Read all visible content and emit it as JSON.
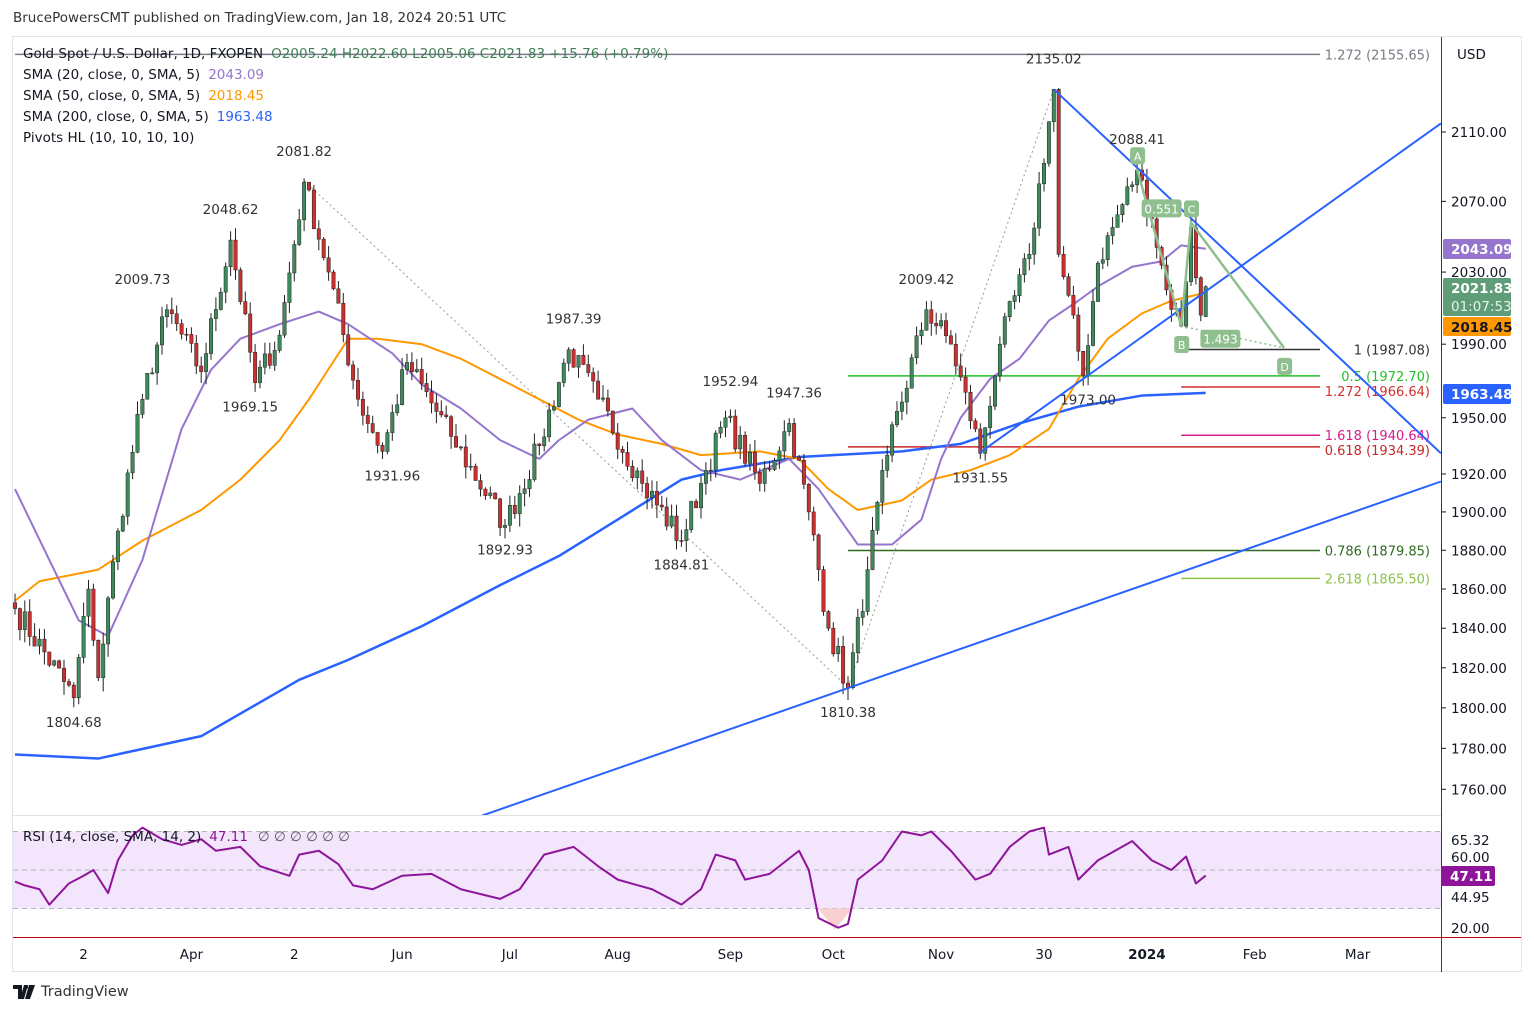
{
  "header": {
    "published": "BrucePowersCMT published on TradingView.com, Jan 18, 2024 20:51 UTC"
  },
  "legend": {
    "symbol": "Gold Spot / U.S. Dollar, 1D, FXOPEN",
    "ohlc": "O2005.24  H2022.60  L2005.06  C2021.83  +15.76 (+0.79%)",
    "sma20_label": "SMA (20, close, 0, SMA, 5)",
    "sma20_value": "2043.09",
    "sma50_label": "SMA (50, close, 0, SMA, 5)",
    "sma50_value": "2018.45",
    "sma200_label": "SMA (200, close, 0, SMA, 5)",
    "sma200_value": "1963.48",
    "pivots_label": "Pivots HL (10, 10, 10, 10)"
  },
  "rsi_legend": {
    "label": "RSI (14, close, SMA, 14, 2)",
    "value": "47.11",
    "extras": "∅  ∅  ∅  ∅  ∅  ∅"
  },
  "currency": "USD",
  "badges": {
    "sma20": {
      "value": "2043.09",
      "color": "#9575cd"
    },
    "price": {
      "value": "2021.83",
      "countdown": "01:07:53",
      "color": "#5f9c78"
    },
    "sma50": {
      "value": "2018.45",
      "color": "#ff9800"
    },
    "sma200": {
      "value": "1963.48",
      "color": "#2962ff"
    },
    "rsi": {
      "value": "47.11",
      "color": "#8e1599"
    }
  },
  "footer": {
    "brand": "TradingView"
  },
  "colors": {
    "up": "#3f8a5c",
    "down": "#c8312f",
    "sma20": "#9575cd",
    "sma50": "#ff9800",
    "sma200": "#2962ff",
    "trend": "#2962ff",
    "rsi": "#8e1599",
    "pattern": "#8fbf8f"
  },
  "chart_data": {
    "type": "candlestick",
    "title": "Gold Spot / U.S. Dollar, 1D, FXOPEN",
    "x_unit": "trading bar index (0 = mid Feb 2023, 243 = Jan 18 2024)",
    "price_scale": "log",
    "ylim": [
      1747,
      2175
    ],
    "price_ticks": [
      "2110.00",
      "2070.00",
      "2030.00",
      "1990.00",
      "1950.00",
      "1920.00",
      "1900.00",
      "1880.00",
      "1860.00",
      "1840.00",
      "1820.00",
      "1800.00",
      "1780.00",
      "1760.00"
    ],
    "time_ticks": [
      {
        "label": "2",
        "bar": 14
      },
      {
        "label": "Apr",
        "bar": 36
      },
      {
        "label": "2",
        "bar": 57
      },
      {
        "label": "Jun",
        "bar": 79
      },
      {
        "label": "Jul",
        "bar": 101
      },
      {
        "label": "Aug",
        "bar": 123
      },
      {
        "label": "Sep",
        "bar": 146
      },
      {
        "label": "Oct",
        "bar": 167
      },
      {
        "label": "Nov",
        "bar": 189
      },
      {
        "label": "30",
        "bar": 210
      },
      {
        "label": "2024",
        "bar": 231,
        "bold": true
      },
      {
        "label": "Feb",
        "bar": 253
      },
      {
        "label": "Mar",
        "bar": 274
      }
    ],
    "last_bar": {
      "bar": 243,
      "open": 2005.24,
      "high": 2022.6,
      "low": 2005.06,
      "close": 2021.83
    },
    "price_path_anchors": [
      [
        0,
        1850
      ],
      [
        12,
        1805
      ],
      [
        15,
        1860
      ],
      [
        17,
        1815
      ],
      [
        21,
        1890
      ],
      [
        26,
        1960
      ],
      [
        31,
        2009
      ],
      [
        38,
        1975
      ],
      [
        44,
        2048
      ],
      [
        49,
        1969
      ],
      [
        54,
        1995
      ],
      [
        59,
        2081
      ],
      [
        64,
        2030
      ],
      [
        70,
        1960
      ],
      [
        75,
        1932
      ],
      [
        80,
        1980
      ],
      [
        89,
        1940
      ],
      [
        100,
        1893
      ],
      [
        107,
        1935
      ],
      [
        113,
        1987
      ],
      [
        119,
        1960
      ],
      [
        128,
        1915
      ],
      [
        136,
        1885
      ],
      [
        140,
        1915
      ],
      [
        145,
        1950
      ],
      [
        152,
        1915
      ],
      [
        158,
        1947
      ],
      [
        162,
        1900
      ],
      [
        166,
        1840
      ],
      [
        170,
        1810
      ],
      [
        174,
        1870
      ],
      [
        178,
        1930
      ],
      [
        186,
        2009
      ],
      [
        191,
        1990
      ],
      [
        197,
        1931
      ],
      [
        201,
        1990
      ],
      [
        207,
        2040
      ],
      [
        212,
        2135
      ],
      [
        213,
        2040
      ],
      [
        218,
        1973
      ],
      [
        221,
        2035
      ],
      [
        229,
        2088
      ],
      [
        232,
        2060
      ],
      [
        235,
        2020
      ],
      [
        238,
        2000
      ],
      [
        240,
        2055
      ],
      [
        242,
        2006
      ],
      [
        243,
        2021.83
      ]
    ],
    "sma20": [
      [
        0,
        1912
      ],
      [
        7,
        1875
      ],
      [
        13,
        1844
      ],
      [
        19,
        1836
      ],
      [
        26,
        1875
      ],
      [
        34,
        1944
      ],
      [
        40,
        1976
      ],
      [
        46,
        1993
      ],
      [
        54,
        2001
      ],
      [
        62,
        2008
      ],
      [
        68,
        2001
      ],
      [
        77,
        1985
      ],
      [
        83,
        1968
      ],
      [
        91,
        1955
      ],
      [
        99,
        1938
      ],
      [
        107,
        1928
      ],
      [
        111,
        1938
      ],
      [
        117,
        1949
      ],
      [
        126,
        1955
      ],
      [
        132,
        1938
      ],
      [
        140,
        1922
      ],
      [
        148,
        1917
      ],
      [
        158,
        1928
      ],
      [
        164,
        1912
      ],
      [
        172,
        1883
      ],
      [
        179,
        1883
      ],
      [
        185,
        1896
      ],
      [
        189,
        1928
      ],
      [
        193,
        1950
      ],
      [
        199,
        1971
      ],
      [
        205,
        1982
      ],
      [
        211,
        2003
      ],
      [
        217,
        2014
      ],
      [
        221,
        2022
      ],
      [
        228,
        2033
      ],
      [
        234,
        2036
      ],
      [
        238,
        2045
      ],
      [
        243,
        2043.09
      ]
    ],
    "sma50": [
      [
        0,
        1854
      ],
      [
        5,
        1864
      ],
      [
        17,
        1870
      ],
      [
        26,
        1885
      ],
      [
        38,
        1901
      ],
      [
        46,
        1917
      ],
      [
        54,
        1938
      ],
      [
        60,
        1960
      ],
      [
        68,
        1993
      ],
      [
        74,
        1993
      ],
      [
        83,
        1990
      ],
      [
        91,
        1982
      ],
      [
        99,
        1971
      ],
      [
        107,
        1960
      ],
      [
        115,
        1949
      ],
      [
        123,
        1941
      ],
      [
        132,
        1936
      ],
      [
        140,
        1930
      ],
      [
        152,
        1932
      ],
      [
        160,
        1928
      ],
      [
        166,
        1912
      ],
      [
        172,
        1901
      ],
      [
        181,
        1906
      ],
      [
        187,
        1917
      ],
      [
        195,
        1922
      ],
      [
        203,
        1930
      ],
      [
        211,
        1944
      ],
      [
        217,
        1971
      ],
      [
        223,
        1993
      ],
      [
        230,
        2007
      ],
      [
        236,
        2014
      ],
      [
        243,
        2018.45
      ]
    ],
    "sma200": [
      [
        0,
        1777
      ],
      [
        17,
        1775
      ],
      [
        38,
        1786
      ],
      [
        58,
        1814
      ],
      [
        68,
        1824
      ],
      [
        83,
        1841
      ],
      [
        99,
        1862
      ],
      [
        111,
        1877
      ],
      [
        123,
        1896
      ],
      [
        136,
        1917
      ],
      [
        144,
        1922
      ],
      [
        160,
        1929
      ],
      [
        181,
        1932
      ],
      [
        193,
        1936
      ],
      [
        205,
        1947
      ],
      [
        217,
        1956
      ],
      [
        230,
        1962
      ],
      [
        243,
        1963.48
      ]
    ],
    "pivot_labels": [
      {
        "text": "1804.68",
        "bar": 12,
        "price": 1805,
        "pos": "below"
      },
      {
        "text": "2009.73",
        "bar": 26,
        "price": 2009,
        "pos": "above"
      },
      {
        "text": "2048.62",
        "bar": 44,
        "price": 2048,
        "pos": "above"
      },
      {
        "text": "1969.15",
        "bar": 48,
        "price": 1969,
        "pos": "below"
      },
      {
        "text": "2081.82",
        "bar": 59,
        "price": 2081,
        "pos": "above"
      },
      {
        "text": "1931.96",
        "bar": 77,
        "price": 1932,
        "pos": "below"
      },
      {
        "text": "1892.93",
        "bar": 100,
        "price": 1893,
        "pos": "below"
      },
      {
        "text": "1987.39",
        "bar": 114,
        "price": 1987,
        "pos": "above"
      },
      {
        "text": "1884.81",
        "bar": 136,
        "price": 1885,
        "pos": "below"
      },
      {
        "text": "1952.94",
        "bar": 146,
        "price": 1953,
        "pos": "above"
      },
      {
        "text": "1947.36",
        "bar": 159,
        "price": 1947,
        "pos": "above"
      },
      {
        "text": "1810.38",
        "bar": 170,
        "price": 1810,
        "pos": "below"
      },
      {
        "text": "2009.42",
        "bar": 186,
        "price": 2009,
        "pos": "above"
      },
      {
        "text": "1931.55",
        "bar": 197,
        "price": 1931,
        "pos": "below"
      },
      {
        "text": "2135.02",
        "bar": 212,
        "price": 2135,
        "pos": "above"
      },
      {
        "text": "1973.00",
        "bar": 219,
        "price": 1973,
        "pos": "below"
      },
      {
        "text": "2088.41",
        "bar": 229,
        "price": 2088,
        "pos": "above"
      }
    ],
    "trendlines": [
      {
        "from": [
          95,
          1747
        ],
        "to": [
          291,
          1916
        ]
      },
      {
        "from": [
          197,
          1931.5
        ],
        "to": [
          291,
          2115
        ]
      },
      {
        "from": [
          212,
          2135
        ],
        "to": [
          291,
          1931
        ]
      }
    ],
    "dotted_lines": [
      [
        [
          59,
          2081.82
        ],
        [
          170,
          1810.38
        ]
      ],
      [
        [
          170,
          1810.38
        ],
        [
          212,
          2135.02
        ]
      ]
    ],
    "fib_levels": [
      {
        "label": "1.272 (2155.65)",
        "price": 2155.65,
        "from_bar": 0,
        "color": "#787b86"
      },
      {
        "label": "1 (1987.08)",
        "price": 1987.08,
        "from_bar": 238,
        "color": "#333333"
      },
      {
        "label": "0.5 (1972.70)",
        "price": 1972.7,
        "from_bar": 170,
        "color": "#22c02a"
      },
      {
        "label": "1.272 (1966.64)",
        "price": 1966.64,
        "from_bar": 238,
        "color": "#d32f2f"
      },
      {
        "label": "1.618 (1940.64)",
        "price": 1940.64,
        "from_bar": 238,
        "color": "#d81b8c"
      },
      {
        "label": "0.618 (1934.39)",
        "price": 1934.39,
        "from_bar": 170,
        "color": "#c62828"
      },
      {
        "label": "0.786 (1879.85)",
        "price": 1879.85,
        "from_bar": 170,
        "color": "#2e6b1f"
      },
      {
        "label": "2.618 (1865.50)",
        "price": 1865.5,
        "from_bar": 238,
        "color": "#8bc34a"
      }
    ],
    "abcd_pattern": {
      "points": [
        {
          "label": "A",
          "bar": 229,
          "price": 2088.41
        },
        {
          "label": "B",
          "bar": 238,
          "price": 2000
        },
        {
          "label": "C",
          "bar": 240,
          "price": 2058
        },
        {
          "label": "D",
          "bar": 259,
          "price": 1988
        }
      ],
      "ratios": [
        {
          "text": "0.551",
          "bar": 234,
          "price": 2066
        },
        {
          "text": "1.493",
          "bar": 246,
          "price": 1993
        }
      ]
    },
    "rsi": {
      "ylim": [
        15,
        75
      ],
      "levels": [
        70,
        50,
        30
      ],
      "ticks": [
        "65.32",
        "60.00",
        "44.95",
        "20.00"
      ],
      "points": [
        [
          0,
          44
        ],
        [
          2,
          42
        ],
        [
          5,
          40
        ],
        [
          7,
          32
        ],
        [
          11,
          43
        ],
        [
          14,
          47
        ],
        [
          16,
          50
        ],
        [
          19,
          38
        ],
        [
          21,
          55
        ],
        [
          24,
          68
        ],
        [
          26,
          72
        ],
        [
          30,
          66
        ],
        [
          34,
          63
        ],
        [
          38,
          66
        ],
        [
          41,
          60
        ],
        [
          46,
          62
        ],
        [
          50,
          52
        ],
        [
          56,
          47
        ],
        [
          58,
          58
        ],
        [
          62,
          60
        ],
        [
          66,
          53
        ],
        [
          69,
          42
        ],
        [
          73,
          40
        ],
        [
          79,
          47
        ],
        [
          85,
          48
        ],
        [
          91,
          40
        ],
        [
          99,
          35
        ],
        [
          103,
          40
        ],
        [
          108,
          58
        ],
        [
          114,
          62
        ],
        [
          119,
          52
        ],
        [
          123,
          45
        ],
        [
          130,
          40
        ],
        [
          136,
          32
        ],
        [
          140,
          40
        ],
        [
          143,
          58
        ],
        [
          147,
          55
        ],
        [
          149,
          45
        ],
        [
          154,
          48
        ],
        [
          160,
          60
        ],
        [
          162,
          50
        ],
        [
          164,
          25
        ],
        [
          168,
          20
        ],
        [
          170,
          22
        ],
        [
          172,
          45
        ],
        [
          177,
          55
        ],
        [
          181,
          70
        ],
        [
          185,
          68
        ],
        [
          187,
          70
        ],
        [
          191,
          60
        ],
        [
          196,
          45
        ],
        [
          199,
          48
        ],
        [
          203,
          62
        ],
        [
          207,
          70
        ],
        [
          210,
          72
        ],
        [
          211,
          58
        ],
        [
          215,
          62
        ],
        [
          217,
          45
        ],
        [
          221,
          55
        ],
        [
          228,
          65
        ],
        [
          232,
          55
        ],
        [
          236,
          50
        ],
        [
          239,
          57
        ],
        [
          241,
          43
        ],
        [
          243,
          47.11
        ]
      ]
    }
  }
}
